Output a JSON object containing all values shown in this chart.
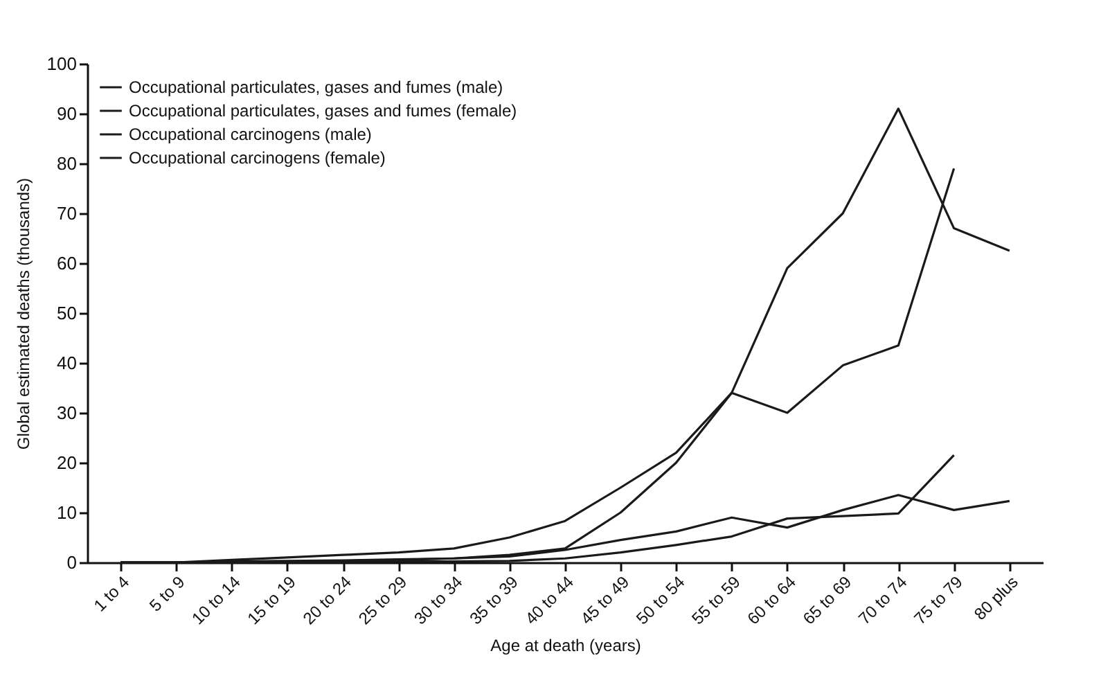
{
  "chart_data": {
    "type": "line",
    "xlabel": "Age at death (years)",
    "ylabel": "Global estimated deaths (thousands)",
    "categories": [
      "1 to 4",
      "5 to 9",
      "10 to 14",
      "15 to 19",
      "20 to 24",
      "25 to 29",
      "30 to 34",
      "35 to 39",
      "40 to 44",
      "45 to 49",
      "50 to 54",
      "55 to 59",
      "60 to 64",
      "65 to 69",
      "70 to 74",
      "75 to 79",
      "80 plus"
    ],
    "series": [
      {
        "name": "Occupational particulates, gases and fumes (male)",
        "color": "#1a1a1a",
        "values": [
          0,
          0,
          0.1,
          0.2,
          0.3,
          0.5,
          0.8,
          1.5,
          2.8,
          10,
          20,
          34,
          30,
          39.5,
          43.5,
          79,
          null
        ]
      },
      {
        "name": "Occupational particulates, gases and fumes (female)",
        "color": "#1a1a1a",
        "values": [
          0,
          0,
          0,
          0.1,
          0.1,
          0.2,
          0.2,
          0.3,
          0.8,
          2,
          3.5,
          5.2,
          8.8,
          9.3,
          9.8,
          21.5,
          null
        ]
      },
      {
        "name": "Occupational carcinogens (male)",
        "color": "#1a1a1a",
        "values": [
          0,
          0,
          0.5,
          1,
          1.5,
          2,
          2.8,
          5,
          8.3,
          15,
          22,
          34,
          59,
          70,
          91,
          67,
          62.5
        ]
      },
      {
        "name": "Occupational carcinogens (female)",
        "color": "#1a1a1a",
        "values": [
          0,
          0,
          0.2,
          0.3,
          0.4,
          0.6,
          0.8,
          1.2,
          2.5,
          4.5,
          6.2,
          9,
          7,
          10.5,
          13.5,
          10.5,
          12.3
        ]
      }
    ],
    "ylim": [
      0,
      100
    ],
    "yticks": [
      0,
      10,
      20,
      30,
      40,
      50,
      60,
      70,
      80,
      90,
      100
    ],
    "grid": false,
    "legend": "top left",
    "line_style": "solid",
    "marker": "none"
  }
}
